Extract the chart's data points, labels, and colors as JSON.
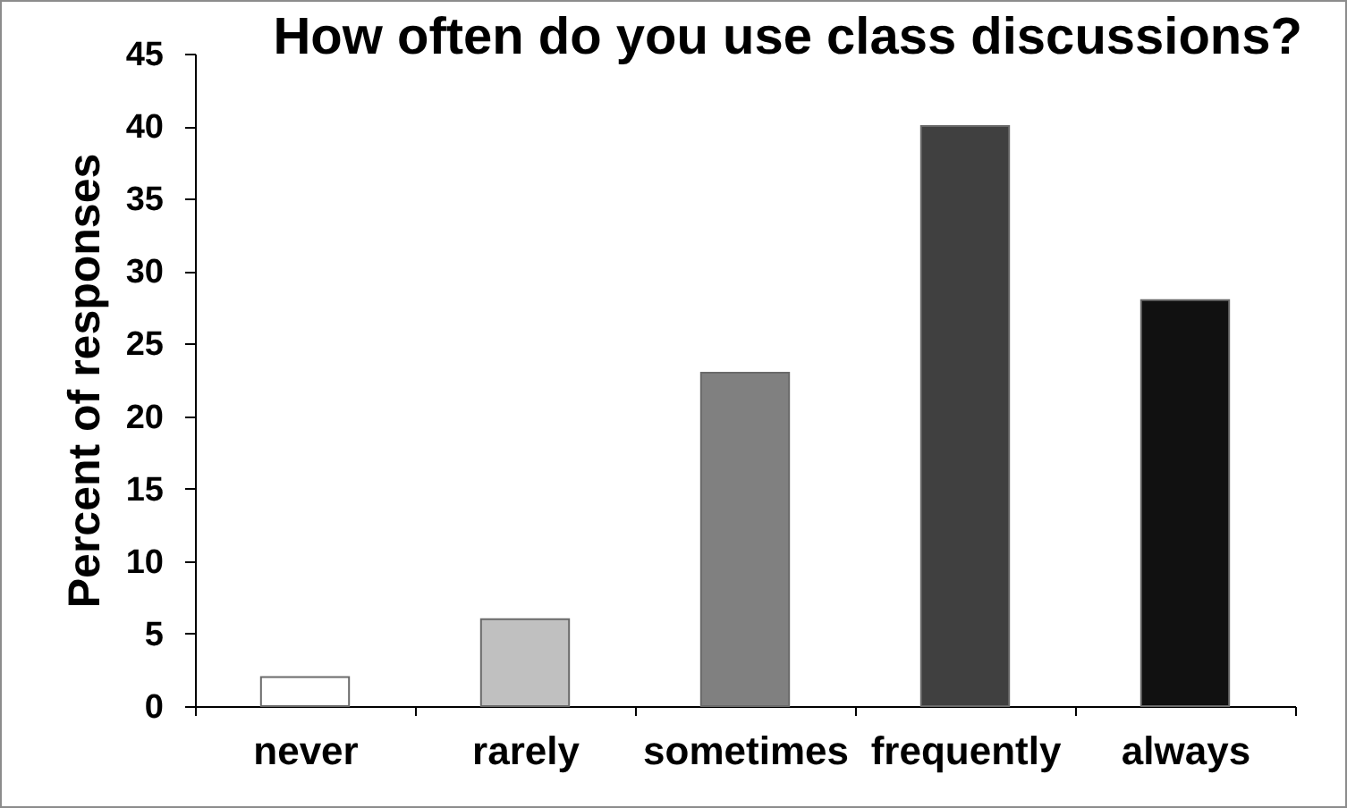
{
  "chart_data": {
    "type": "bar",
    "title": "How often do you use class discussions?",
    "ylabel": "Percent of responses",
    "categories": [
      "never",
      "rarely",
      "sometimes",
      "frequently",
      "always"
    ],
    "values": [
      2,
      6,
      23,
      40,
      28
    ],
    "colors": [
      "#ffffff",
      "#c0c0c0",
      "#808080",
      "#404040",
      "#111111"
    ],
    "ylim": [
      0,
      45
    ],
    "yticks": [
      0,
      5,
      10,
      15,
      20,
      25,
      30,
      35,
      40,
      45
    ]
  }
}
